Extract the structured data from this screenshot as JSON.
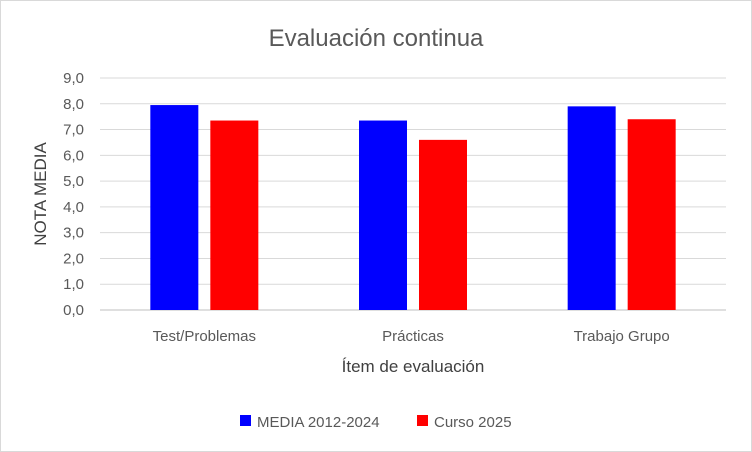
{
  "chart_data": {
    "type": "bar",
    "title": "Evaluación continua",
    "xlabel": "Ítem de evaluación",
    "ylabel": "NOTA MEDIA",
    "categories": [
      "Test/Problemas",
      "Prácticas",
      "Trabajo Grupo"
    ],
    "series": [
      {
        "name": "MEDIA 2012-2024",
        "values": [
          7.95,
          7.35,
          7.9
        ],
        "color": "#0000FF"
      },
      {
        "name": "Curso 2025",
        "values": [
          7.35,
          6.6,
          7.4
        ],
        "color": "#FF0000"
      }
    ],
    "ylim": [
      0,
      9
    ],
    "yticks": [
      "0,0",
      "1,0",
      "2,0",
      "3,0",
      "4,0",
      "5,0",
      "6,0",
      "7,0",
      "8,0",
      "9,0"
    ],
    "grid": true,
    "legend_position": "bottom"
  }
}
